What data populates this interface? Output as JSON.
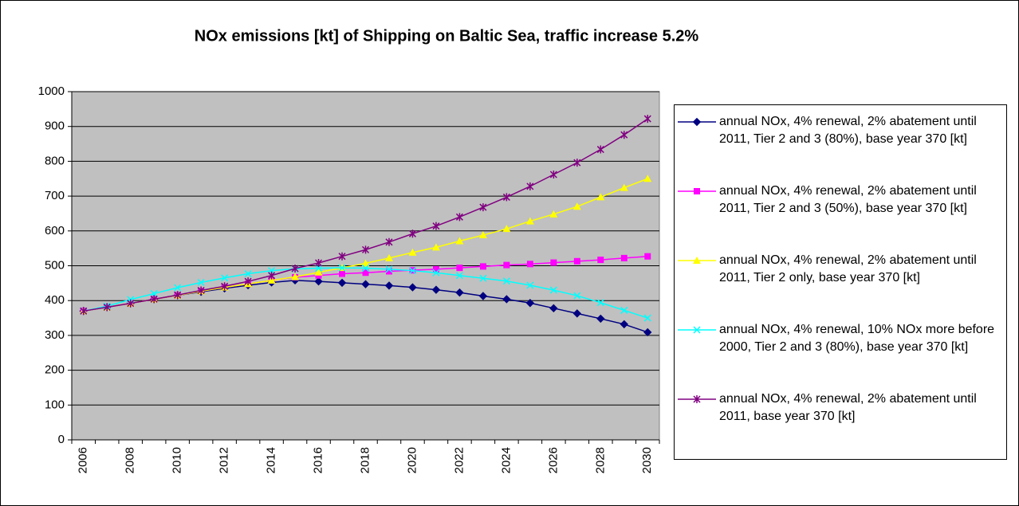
{
  "chart_data": {
    "type": "line",
    "title": "NOx emissions [kt] of Shipping on Baltic Sea, traffic increase 5.2%",
    "categories": [
      "2006",
      null,
      "2008",
      null,
      "2010",
      null,
      "2012",
      null,
      "2014",
      null,
      "2016",
      null,
      "2018",
      null,
      "2020",
      null,
      "2022",
      null,
      "2024",
      null,
      "2026",
      null,
      "2028",
      null,
      "2030"
    ],
    "ylim": [
      0,
      1000
    ],
    "yticks": [
      0,
      100,
      200,
      300,
      400,
      500,
      600,
      700,
      800,
      900,
      1000
    ],
    "grid": true,
    "plot_background": "#c0c0c0",
    "legend": "right",
    "series": [
      {
        "name": "annual NOx, 4% renewal, 2% abatement until 2011, Tier 2 and 3 (80%), base year 370 [kt]",
        "color": "#000080",
        "marker": "diamond",
        "values": [
          370,
          381,
          392,
          404,
          415,
          425,
          435,
          444,
          452,
          458,
          455,
          451,
          447,
          443,
          438,
          431,
          423,
          413,
          404,
          393,
          378,
          363,
          348,
          332,
          309
        ]
      },
      {
        "name": "annual NOx, 4% renewal, 2% abatement until 2011, Tier 2 and 3 (50%), base year 370 [kt]",
        "color": "#ff00ff",
        "marker": "square",
        "values": [
          370,
          381,
          392,
          404,
          415,
          427,
          438,
          448,
          458,
          467,
          472,
          477,
          480,
          484,
          487,
          490,
          494,
          498,
          502,
          505,
          509,
          513,
          517,
          522,
          527
        ]
      },
      {
        "name": "annual NOx, 4% renewal, 2% abatement until 2011, Tier 2 only, base year 370 [kt]",
        "color": "#ffff00",
        "marker": "triangle",
        "values": [
          370,
          381,
          392,
          404,
          415,
          427,
          438,
          448,
          458,
          468,
          481,
          494,
          507,
          522,
          538,
          553,
          571,
          588,
          606,
          628,
          648,
          670,
          697,
          724,
          750
        ]
      },
      {
        "name": "annual NOx, 4% renewal, 10% NOx more before 2000, Tier 2 and 3 (80%), base year 370 [kt]",
        "color": "#00ffff",
        "marker": "x",
        "values": [
          370,
          384,
          403,
          420,
          437,
          452,
          465,
          477,
          486,
          491,
          493,
          494,
          493,
          490,
          486,
          480,
          472,
          464,
          456,
          444,
          430,
          414,
          394,
          372,
          350
        ]
      },
      {
        "name": "annual NOx, 4% renewal, 2% abatement until 2011, base year 370 [kt]",
        "color": "#800080",
        "marker": "star",
        "values": [
          370,
          381,
          392,
          404,
          416,
          429,
          441,
          455,
          472,
          492,
          508,
          527,
          546,
          568,
          592,
          614,
          640,
          668,
          697,
          728,
          762,
          796,
          834,
          876,
          922
        ]
      }
    ]
  }
}
